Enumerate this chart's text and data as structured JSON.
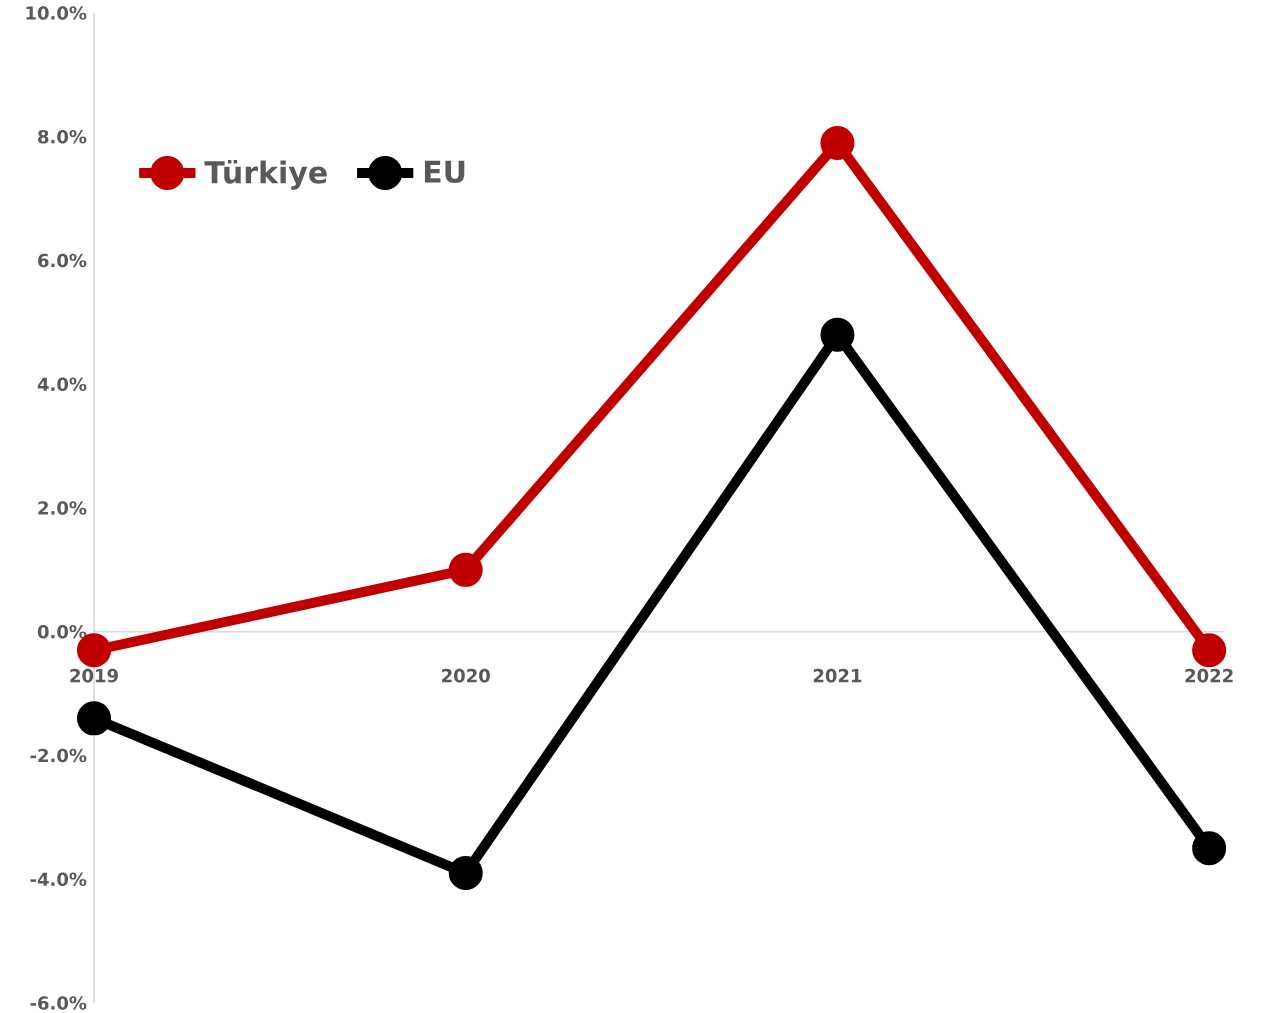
{
  "chart_data": {
    "type": "line",
    "categories": [
      "2019",
      "2020",
      "2021",
      "2022"
    ],
    "series": [
      {
        "name": "Türkiye",
        "color": "#c00000",
        "values": [
          -0.3,
          1.0,
          7.9,
          -0.3
        ]
      },
      {
        "name": "EU",
        "color": "#000000",
        "values": [
          -1.4,
          -3.9,
          4.8,
          -3.5
        ]
      }
    ],
    "ylim": [
      -6,
      10
    ],
    "yticks": [
      {
        "value": -6,
        "label": "-6.0%"
      },
      {
        "value": -4,
        "label": "-4.0%"
      },
      {
        "value": -2,
        "label": "-2.0%"
      },
      {
        "value": 0,
        "label": "0.0%"
      },
      {
        "value": 2,
        "label": "2.0%"
      },
      {
        "value": 4,
        "label": "4.0%"
      },
      {
        "value": 6,
        "label": "6.0%"
      },
      {
        "value": 8,
        "label": "8.0%"
      },
      {
        "value": 10,
        "label": "10.0%"
      }
    ],
    "legend": "top left",
    "marker": "circle",
    "line_style": "solid",
    "grid": false
  }
}
